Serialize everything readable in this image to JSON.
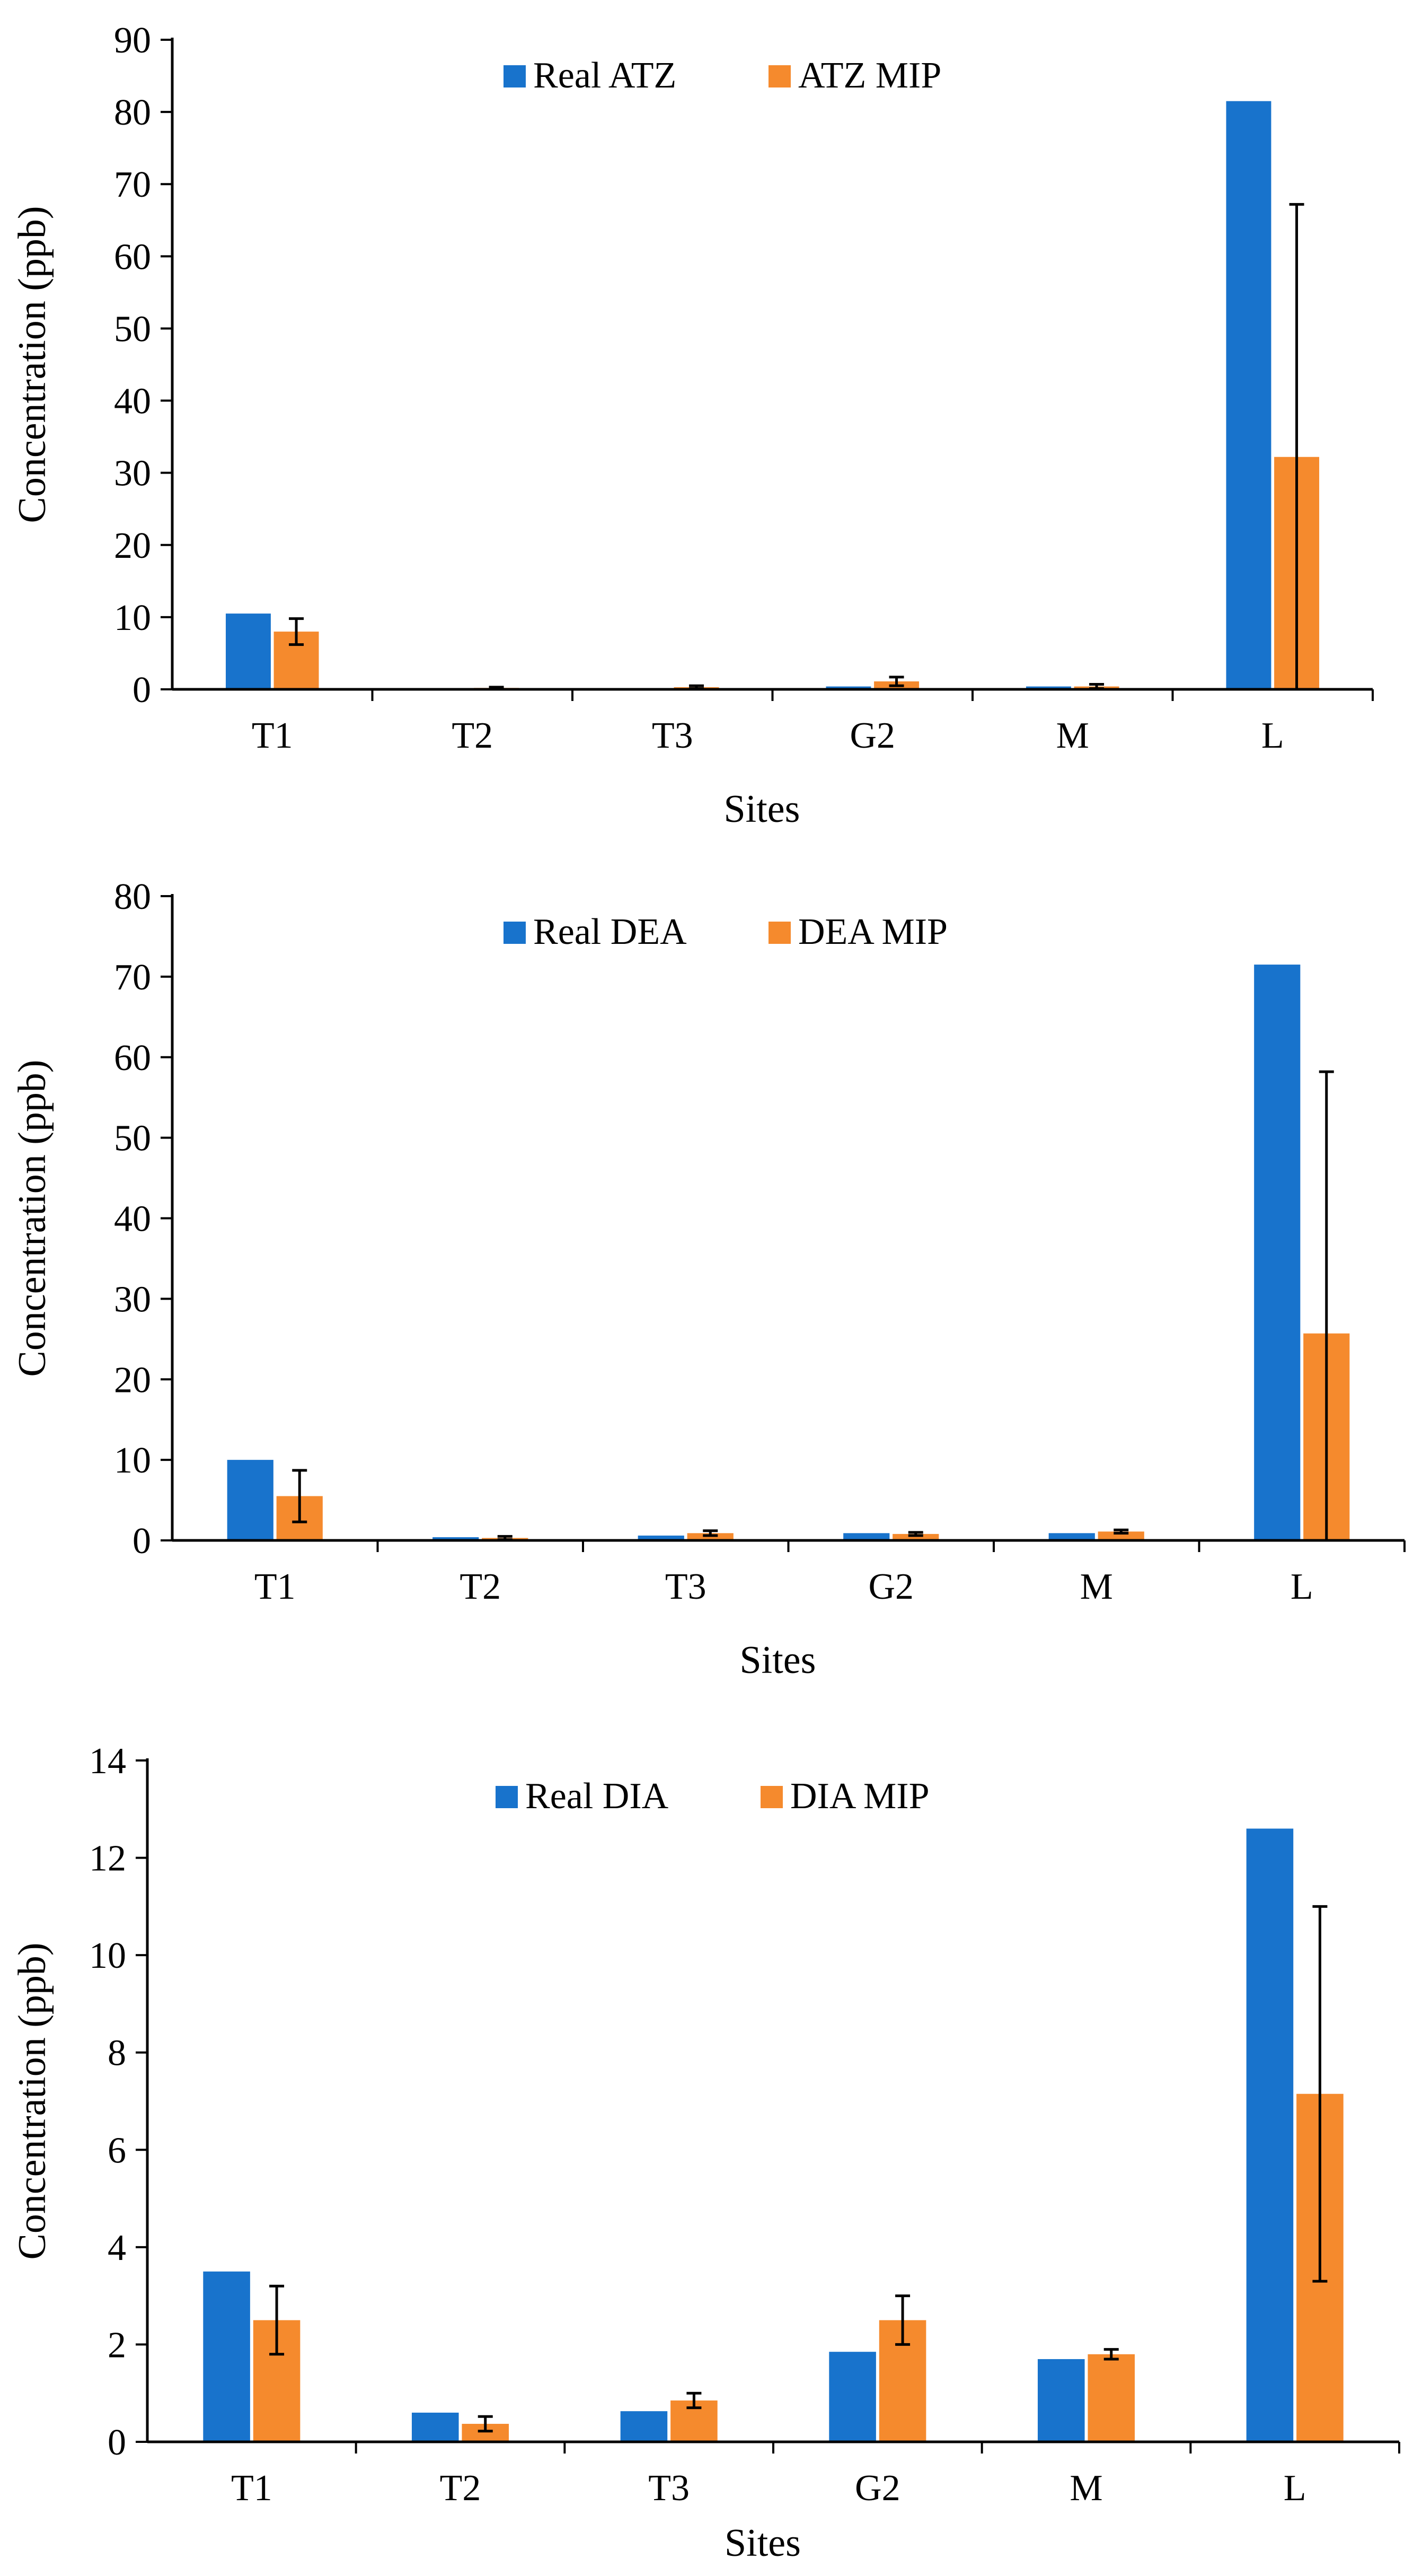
{
  "colors": {
    "real": "#1873CC",
    "mip": "#F58A2D",
    "axis": "#000000",
    "background": "#FFFFFF"
  },
  "chart_data": [
    {
      "type": "bar",
      "categories": [
        "T1",
        "T2",
        "T3",
        "G2",
        "M",
        "L"
      ],
      "series": [
        {
          "name": "Real ATZ",
          "values": [
            10.5,
            0.1,
            0.1,
            0.4,
            0.4,
            81.5
          ]
        },
        {
          "name": "ATZ MIP",
          "values": [
            8.0,
            0.2,
            0.3,
            1.1,
            0.4,
            32.2
          ],
          "errors": [
            1.8,
            0.1,
            0.2,
            0.6,
            0.3,
            35.0
          ]
        }
      ],
      "xlabel": "Sites",
      "ylabel": "Concentration (ppb)",
      "ylim": [
        0,
        90
      ],
      "yticks": [
        0,
        10,
        20,
        30,
        40,
        50,
        60,
        70,
        80,
        90
      ],
      "legend": "top-center",
      "grid": false
    },
    {
      "type": "bar",
      "categories": [
        "T1",
        "T2",
        "T3",
        "G2",
        "M",
        "L"
      ],
      "series": [
        {
          "name": "Real DEA",
          "values": [
            10.0,
            0.4,
            0.6,
            0.9,
            0.9,
            71.5
          ]
        },
        {
          "name": "DEA MIP",
          "values": [
            5.5,
            0.3,
            0.9,
            0.8,
            1.1,
            25.7
          ],
          "errors": [
            3.2,
            0.2,
            0.3,
            0.2,
            0.2,
            32.5
          ]
        }
      ],
      "xlabel": "Sites",
      "ylabel": "Concentration (ppb)",
      "ylim": [
        0,
        80
      ],
      "yticks": [
        0,
        10,
        20,
        30,
        40,
        50,
        60,
        70,
        80
      ],
      "legend": "top-center",
      "grid": false
    },
    {
      "type": "bar",
      "categories": [
        "T1",
        "T2",
        "T3",
        "G2",
        "M",
        "L"
      ],
      "series": [
        {
          "name": "Real DIA",
          "values": [
            3.5,
            0.6,
            0.63,
            1.85,
            1.7,
            12.6
          ]
        },
        {
          "name": "DIA MIP",
          "values": [
            2.5,
            0.37,
            0.85,
            2.5,
            1.8,
            7.15
          ],
          "errors": [
            0.7,
            0.15,
            0.15,
            0.5,
            0.1,
            3.85
          ]
        }
      ],
      "xlabel": "Sites",
      "ylabel": "Concentration (ppb)",
      "ylim": [
        0,
        14
      ],
      "yticks": [
        0,
        2,
        4,
        6,
        8,
        10,
        12,
        14
      ],
      "legend": "top-center",
      "grid": false
    }
  ]
}
